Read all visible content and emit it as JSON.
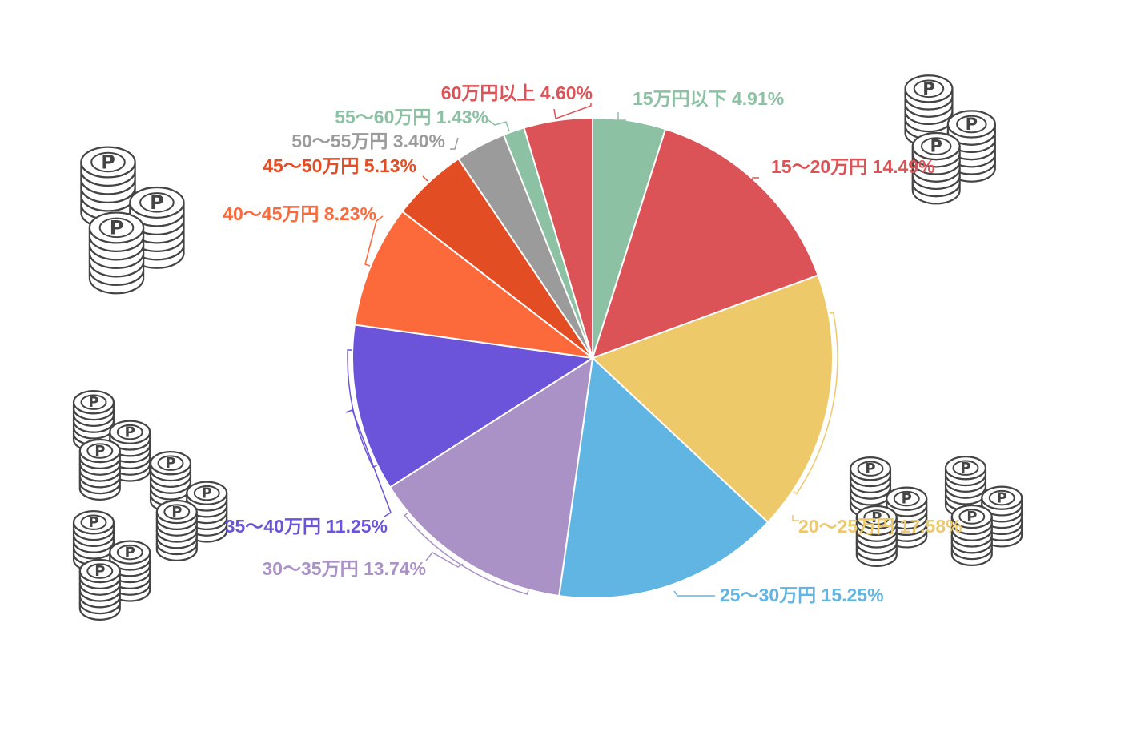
{
  "chart_data": {
    "type": "pie",
    "title": "",
    "start_angle_deg": 0,
    "direction": "clockwise",
    "slices": [
      {
        "category": "15万円以下",
        "value": 4.91,
        "label": "15万円以下 4.91%",
        "color": "#8dc1a4"
      },
      {
        "category": "15～20万円",
        "value": 14.49,
        "label": "15～20万円 14.49%",
        "color": "#dc5357"
      },
      {
        "category": "20～25万円",
        "value": 17.58,
        "label": "20～25万円 17.58%",
        "color": "#eec96a"
      },
      {
        "category": "25～30万円",
        "value": 15.25,
        "label": "25～30万円 15.25%",
        "color": "#61b5e3"
      },
      {
        "category": "30～35万円",
        "value": 13.74,
        "label": "30～35万円 13.74%",
        "color": "#aa92c7"
      },
      {
        "category": "35～40万円",
        "value": 11.25,
        "label": "35～40万円 11.25%",
        "color": "#6b54d9"
      },
      {
        "category": "40～45万円",
        "value": 8.23,
        "label": "40～45万円 8.23%",
        "color": "#fc6a3b"
      },
      {
        "category": "45～50万円",
        "value": 5.13,
        "label": "45～50万円 5.13%",
        "color": "#e34d24"
      },
      {
        "category": "50～55万円",
        "value": 3.4,
        "label": "50～55万円 3.40%",
        "color": "#9b9b9b"
      },
      {
        "category": "55～60万円",
        "value": 1.43,
        "label": "55～60万円 1.43%",
        "color": "#8dc1a4"
      },
      {
        "category": "60万円以上",
        "value": 4.6,
        "label": "60万円以上 4.60%",
        "color": "#dc5357"
      }
    ]
  },
  "decorations": {
    "coin_letter": "P",
    "coin_icon_name": "point-coin-stack-icon"
  }
}
